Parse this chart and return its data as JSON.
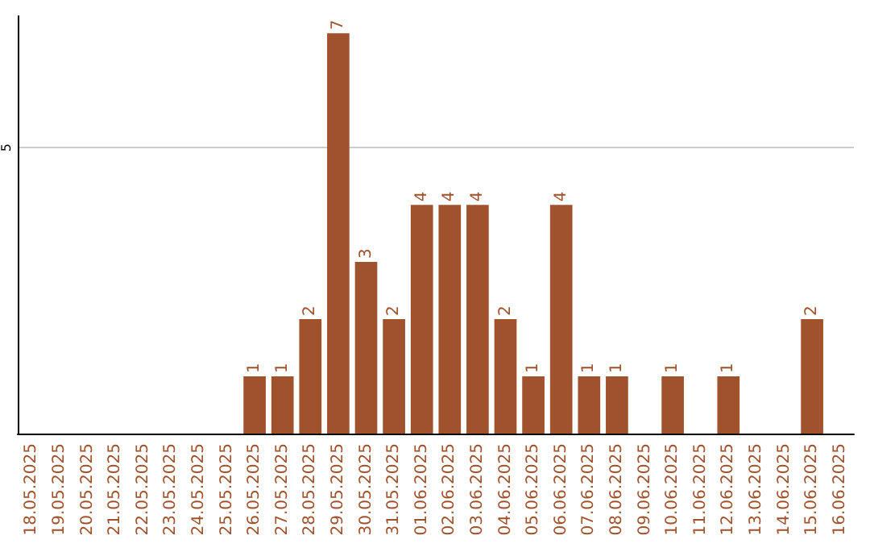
{
  "chart_data": {
    "type": "bar",
    "categories": [
      "18.05.2025",
      "19.05.2025",
      "20.05.2025",
      "21.05.2025",
      "22.05.2025",
      "23.05.2025",
      "24.05.2025",
      "25.05.2025",
      "26.05.2025",
      "27.05.2025",
      "28.05.2025",
      "29.05.2025",
      "30.05.2025",
      "31.05.2025",
      "01.06.2025",
      "02.06.2025",
      "03.06.2025",
      "04.06.2025",
      "05.06.2025",
      "06.06.2025",
      "07.06.2025",
      "08.06.2025",
      "09.06.2025",
      "10.06.2025",
      "11.06.2025",
      "12.06.2025",
      "13.06.2025",
      "14.06.2025",
      "15.06.2025",
      "16.06.2025"
    ],
    "values": [
      0,
      0,
      0,
      0,
      0,
      0,
      0,
      0,
      1,
      1,
      2,
      7,
      3,
      2,
      4,
      4,
      4,
      2,
      1,
      4,
      1,
      1,
      0,
      1,
      0,
      1,
      0,
      0,
      2,
      0
    ],
    "value_labels": [
      null,
      null,
      null,
      null,
      null,
      null,
      null,
      null,
      "1",
      "1",
      "2",
      "7",
      "3",
      "2",
      "4",
      "4",
      "4",
      "2",
      "1",
      "4",
      "1",
      "1",
      null,
      "1",
      null,
      "1",
      null,
      null,
      "2",
      null
    ],
    "color": "#a0522d",
    "ylim": [
      0,
      7.3
    ],
    "yticks": [
      5
    ],
    "grid": "y"
  }
}
